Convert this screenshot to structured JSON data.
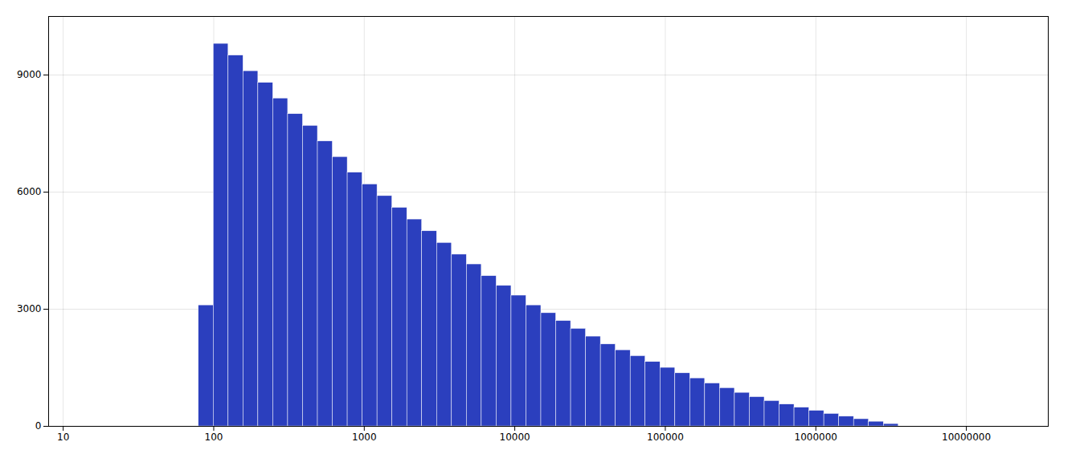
{
  "chart_data": {
    "type": "histogram",
    "bins": [
      79.43,
      99.76,
      125.28,
      157.33,
      197.58,
      248.13,
      311.61,
      391.34,
      491.46,
      617.2,
      775.11,
      973.41,
      1222.46,
      1535.22,
      1928,
      2421.27,
      3040.74,
      3818.7,
      4795.69,
      6022.65,
      7563.51,
      9498.6,
      11928.77,
      14980.69,
      18813.43,
      23626.77,
      29671.56,
      37262.9,
      46796.43,
      58769.08,
      73804.87,
      92687.54,
      116401.2,
      146181.9,
      183581.9,
      230550.5,
      289535.7,
      363612.1,
      456640.6,
      573469.9,
      720189.5,
      904446.8,
      1135845,
      1426446,
      1791396,
      2249716,
      2825295,
      3548134
    ],
    "values": [
      3100,
      9800,
      9500,
      9100,
      8800,
      8400,
      8000,
      7700,
      7300,
      6900,
      6500,
      6200,
      5900,
      5600,
      5300,
      5000,
      4700,
      4400,
      4150,
      3850,
      3600,
      3350,
      3100,
      2900,
      2700,
      2500,
      2300,
      2100,
      1950,
      1800,
      1650,
      1500,
      1360,
      1230,
      1100,
      980,
      860,
      750,
      650,
      560,
      480,
      400,
      320,
      250,
      185,
      120,
      60
    ],
    "color": "#2b3fbe",
    "log": "x",
    "xlim": [
      8,
      35000000
    ],
    "xticks": [
      10,
      100,
      1000,
      10000,
      100000,
      1000000,
      10000000
    ],
    "ylim": [
      0,
      10500
    ],
    "yticks": [
      0,
      3000,
      6000,
      9000
    ],
    "grid": true
  }
}
